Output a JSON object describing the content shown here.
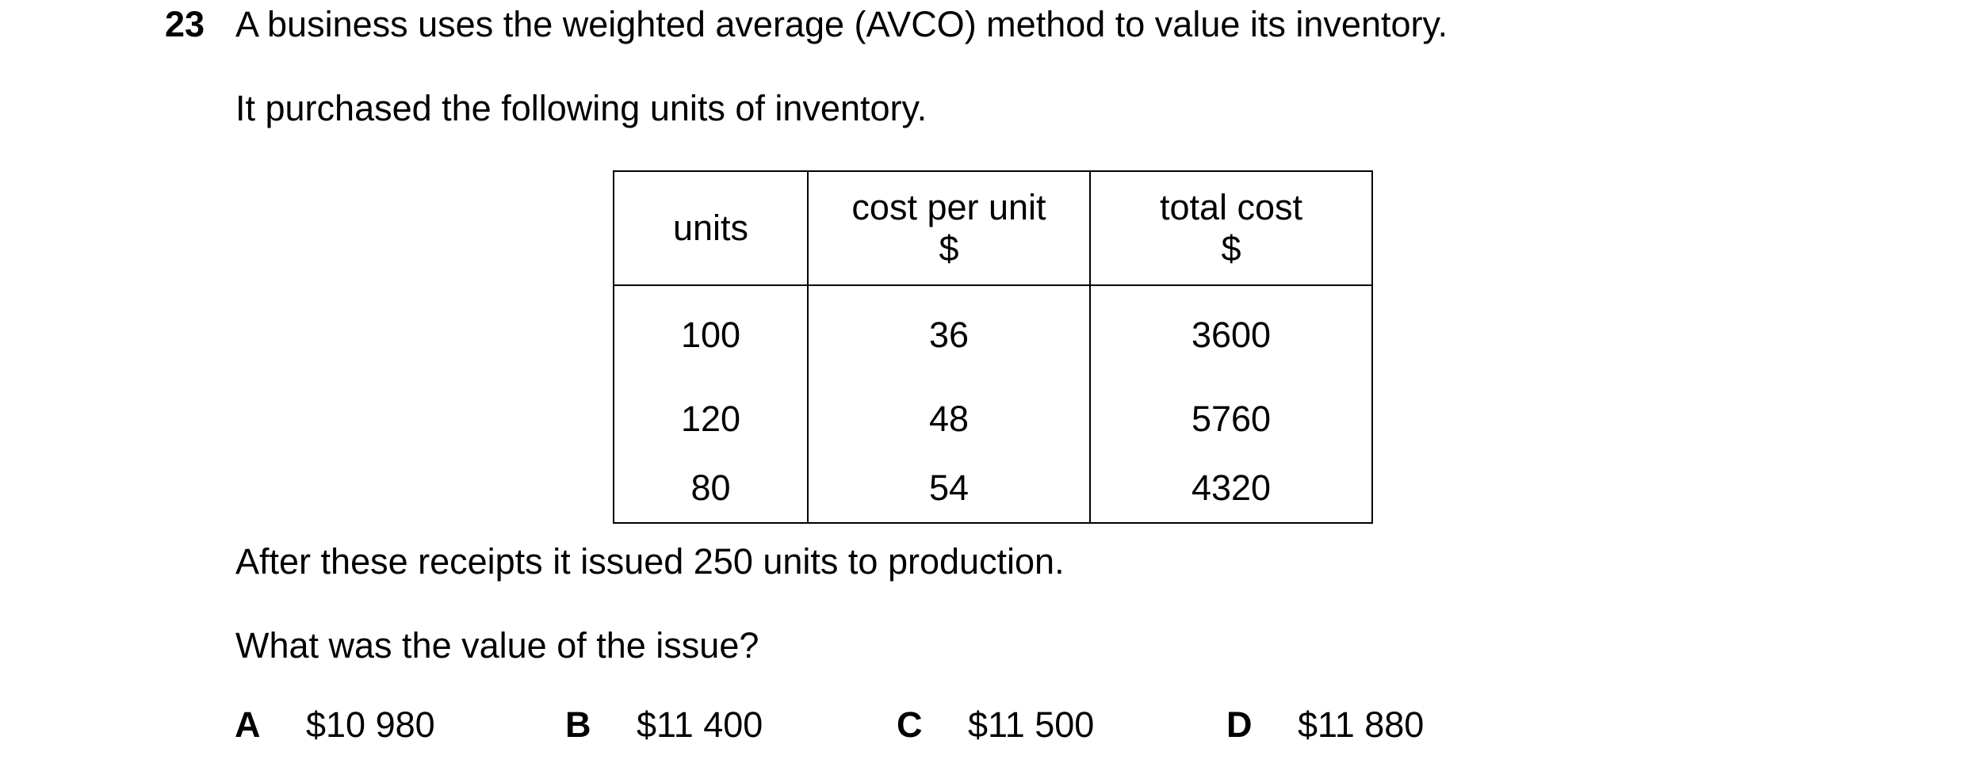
{
  "question": {
    "number": "23",
    "stem": "A business uses the weighted average (AVCO) method to value its inventory.",
    "intro": "It purchased the following units of inventory.",
    "after_table": "After these receipts it issued 250 units to production.",
    "prompt": "What was the value of the issue?"
  },
  "table": {
    "headers": {
      "units": "units",
      "cost_per_unit": "cost per unit",
      "cost_per_unit_unit": "$",
      "total_cost": "total cost",
      "total_cost_unit": "$"
    },
    "rows": [
      {
        "units": "100",
        "cost_per_unit": "36",
        "total_cost": "3600"
      },
      {
        "units": "120",
        "cost_per_unit": "48",
        "total_cost": "5760"
      },
      {
        "units": "80",
        "cost_per_unit": "54",
        "total_cost": "4320"
      }
    ]
  },
  "options": [
    {
      "letter": "A",
      "value": "$10 980"
    },
    {
      "letter": "B",
      "value": "$11 400"
    },
    {
      "letter": "C",
      "value": "$11 500"
    },
    {
      "letter": "D",
      "value": "$11 880"
    }
  ]
}
